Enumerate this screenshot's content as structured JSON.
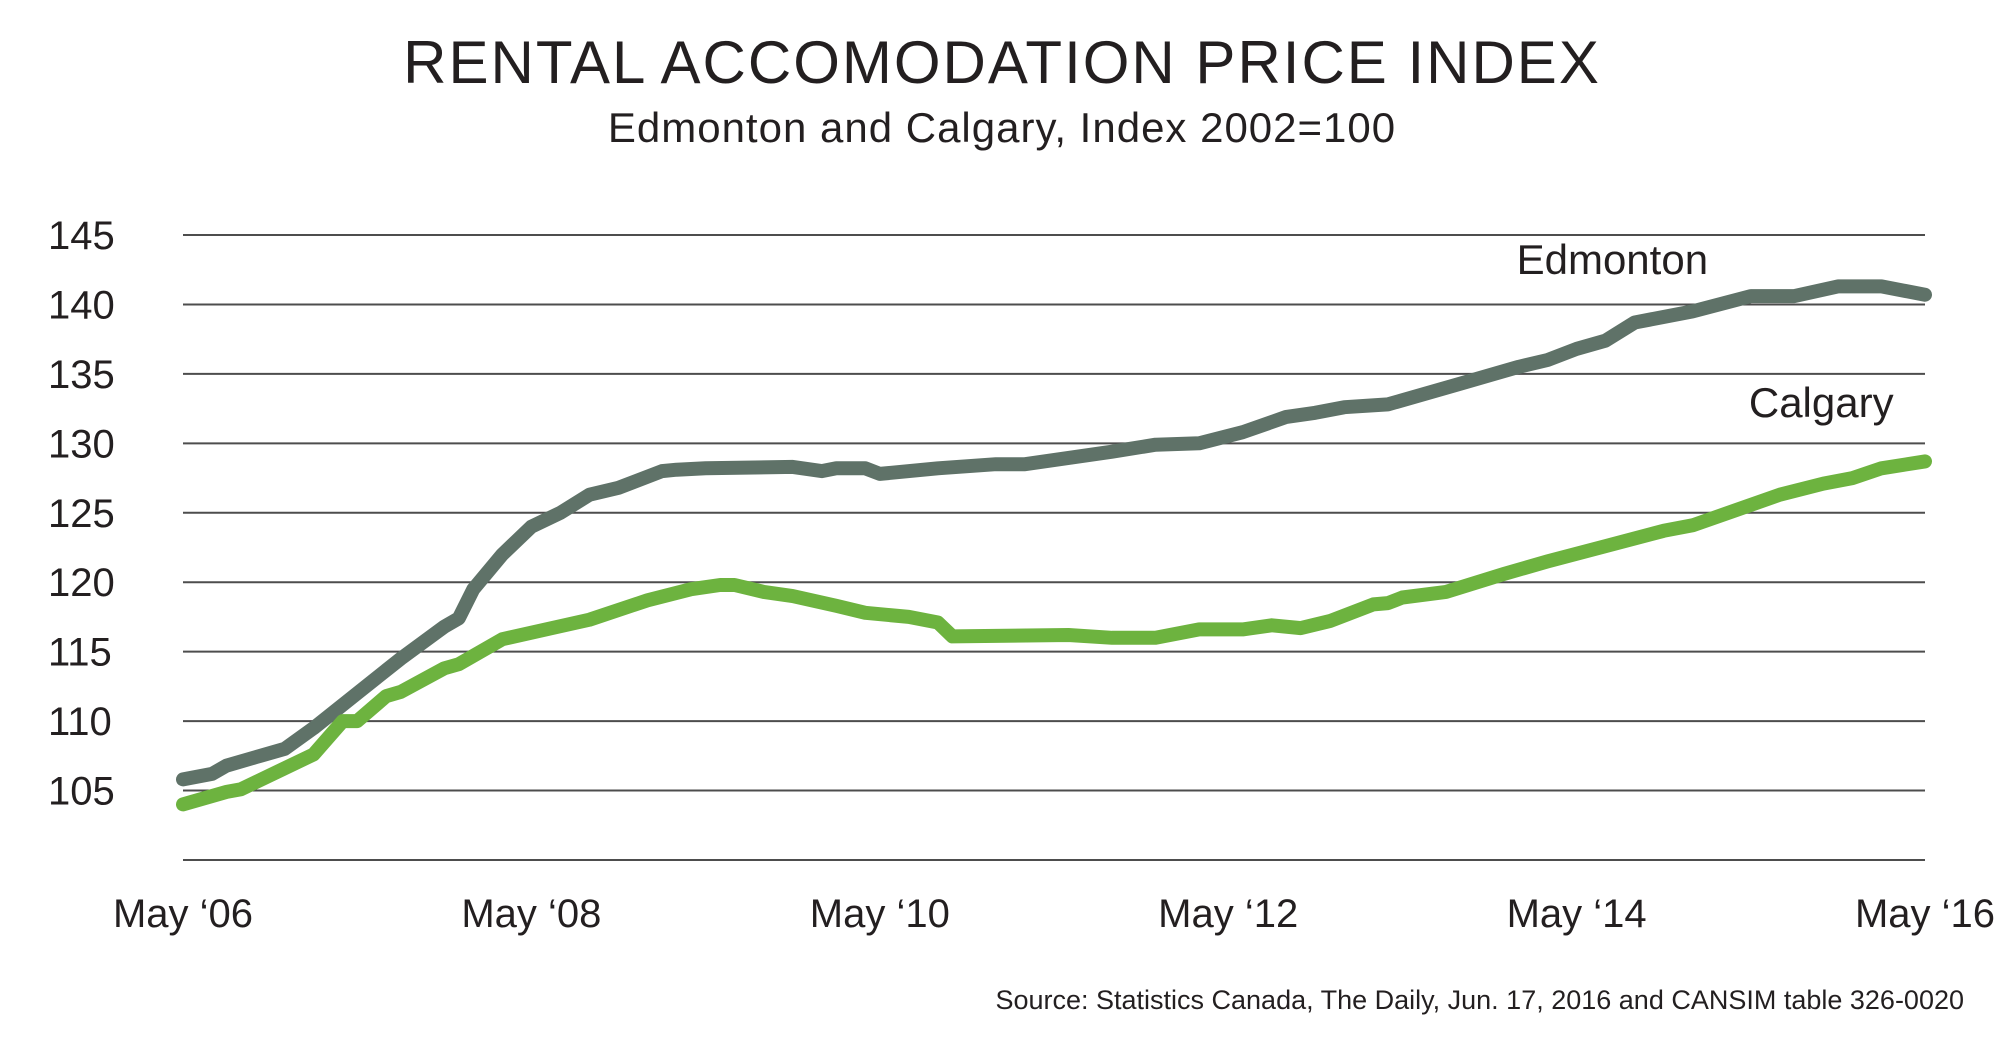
{
  "title": "RENTAL ACCOMODATION PRICE INDEX",
  "subtitle": "Edmonton and Calgary, Index 2002=100",
  "source": "Source: Statistics Canada, The Daily, Jun. 17, 2016 and CANSIM table 326-0020",
  "chart_data": {
    "type": "line",
    "title": "RENTAL ACCOMODATION PRICE INDEX",
    "subtitle": "Edmonton and Calgary, Index 2002=100",
    "xlabel": "",
    "ylabel": "",
    "ylim": [
      100,
      145
    ],
    "xlim": [
      "2006-05",
      "2016-05"
    ],
    "y_ticks": [
      "105",
      "110",
      "115",
      "120",
      "125",
      "130",
      "135",
      "140",
      "145"
    ],
    "x_ticks": [
      {
        "label": "May ‘06",
        "x": "2006-05"
      },
      {
        "label": "May ‘08",
        "x": "2008-05"
      },
      {
        "label": "May ‘10",
        "x": "2010-05"
      },
      {
        "label": "May ‘12",
        "x": "2012-05"
      },
      {
        "label": "May ‘14",
        "x": "2014-05"
      },
      {
        "label": "May ‘16",
        "x": "2016-05"
      }
    ],
    "grid": true,
    "series": [
      {
        "name": "Edmonton",
        "color": "#5f7268",
        "points": [
          [
            "2006-05",
            105.8
          ],
          [
            "2006-07",
            106.2
          ],
          [
            "2006-08",
            106.8
          ],
          [
            "2006-10",
            107.4
          ],
          [
            "2006-12",
            108.0
          ],
          [
            "2007-02",
            109.5
          ],
          [
            "2007-05",
            112.0
          ],
          [
            "2007-08",
            114.5
          ],
          [
            "2007-11",
            116.8
          ],
          [
            "2007-12",
            117.4
          ],
          [
            "2008-01",
            119.5
          ],
          [
            "2008-03",
            122.0
          ],
          [
            "2008-05",
            124.0
          ],
          [
            "2008-07",
            125.0
          ],
          [
            "2008-09",
            126.3
          ],
          [
            "2008-11",
            126.8
          ],
          [
            "2009-02",
            128.0
          ],
          [
            "2009-03",
            128.1
          ],
          [
            "2009-05",
            128.2
          ],
          [
            "2009-11",
            128.3
          ],
          [
            "2010-01",
            128.0
          ],
          [
            "2010-02",
            128.2
          ],
          [
            "2010-04",
            128.2
          ],
          [
            "2010-05",
            127.8
          ],
          [
            "2010-09",
            128.2
          ],
          [
            "2011-01",
            128.5
          ],
          [
            "2011-03",
            128.5
          ],
          [
            "2011-09",
            129.4
          ],
          [
            "2011-12",
            129.9
          ],
          [
            "2012-03",
            130.0
          ],
          [
            "2012-06",
            130.8
          ],
          [
            "2012-09",
            131.9
          ],
          [
            "2012-11",
            132.2
          ],
          [
            "2013-01",
            132.6
          ],
          [
            "2013-04",
            132.8
          ],
          [
            "2013-09",
            134.3
          ],
          [
            "2014-01",
            135.5
          ],
          [
            "2014-03",
            136.0
          ],
          [
            "2014-05",
            136.8
          ],
          [
            "2014-07",
            137.4
          ],
          [
            "2014-09",
            138.7
          ],
          [
            "2015-01",
            139.5
          ],
          [
            "2015-05",
            140.6
          ],
          [
            "2015-08",
            140.6
          ],
          [
            "2015-11",
            141.3
          ],
          [
            "2016-02",
            141.3
          ],
          [
            "2016-05",
            140.7
          ]
        ]
      },
      {
        "name": "Calgary",
        "color": "#6db33f",
        "points": [
          [
            "2006-05",
            104.0
          ],
          [
            "2006-08",
            104.9
          ],
          [
            "2006-09",
            105.1
          ],
          [
            "2006-12",
            106.6
          ],
          [
            "2007-02",
            107.6
          ],
          [
            "2007-04",
            110.0
          ],
          [
            "2007-05",
            110.0
          ],
          [
            "2007-07",
            111.8
          ],
          [
            "2007-08",
            112.1
          ],
          [
            "2007-11",
            113.8
          ],
          [
            "2007-12",
            114.1
          ],
          [
            "2008-03",
            115.9
          ],
          [
            "2008-06",
            116.6
          ],
          [
            "2008-09",
            117.3
          ],
          [
            "2009-01",
            118.7
          ],
          [
            "2009-04",
            119.5
          ],
          [
            "2009-06",
            119.8
          ],
          [
            "2009-07",
            119.8
          ],
          [
            "2009-09",
            119.3
          ],
          [
            "2009-11",
            119.0
          ],
          [
            "2010-02",
            118.3
          ],
          [
            "2010-04",
            117.8
          ],
          [
            "2010-07",
            117.5
          ],
          [
            "2010-09",
            117.1
          ],
          [
            "2010-10",
            116.1
          ],
          [
            "2011-06",
            116.2
          ],
          [
            "2011-09",
            116.0
          ],
          [
            "2011-12",
            116.0
          ],
          [
            "2012-03",
            116.6
          ],
          [
            "2012-06",
            116.6
          ],
          [
            "2012-08",
            116.9
          ],
          [
            "2012-10",
            116.7
          ],
          [
            "2012-12",
            117.2
          ],
          [
            "2013-03",
            118.4
          ],
          [
            "2013-04",
            118.5
          ],
          [
            "2013-05",
            118.9
          ],
          [
            "2013-08",
            119.3
          ],
          [
            "2013-12",
            120.6
          ],
          [
            "2014-03",
            121.5
          ],
          [
            "2014-07",
            122.6
          ],
          [
            "2014-11",
            123.7
          ],
          [
            "2015-01",
            124.1
          ],
          [
            "2015-04",
            125.2
          ],
          [
            "2015-07",
            126.3
          ],
          [
            "2015-10",
            127.1
          ],
          [
            "2015-12",
            127.5
          ],
          [
            "2016-02",
            128.2
          ],
          [
            "2016-05",
            128.7
          ]
        ]
      }
    ]
  }
}
